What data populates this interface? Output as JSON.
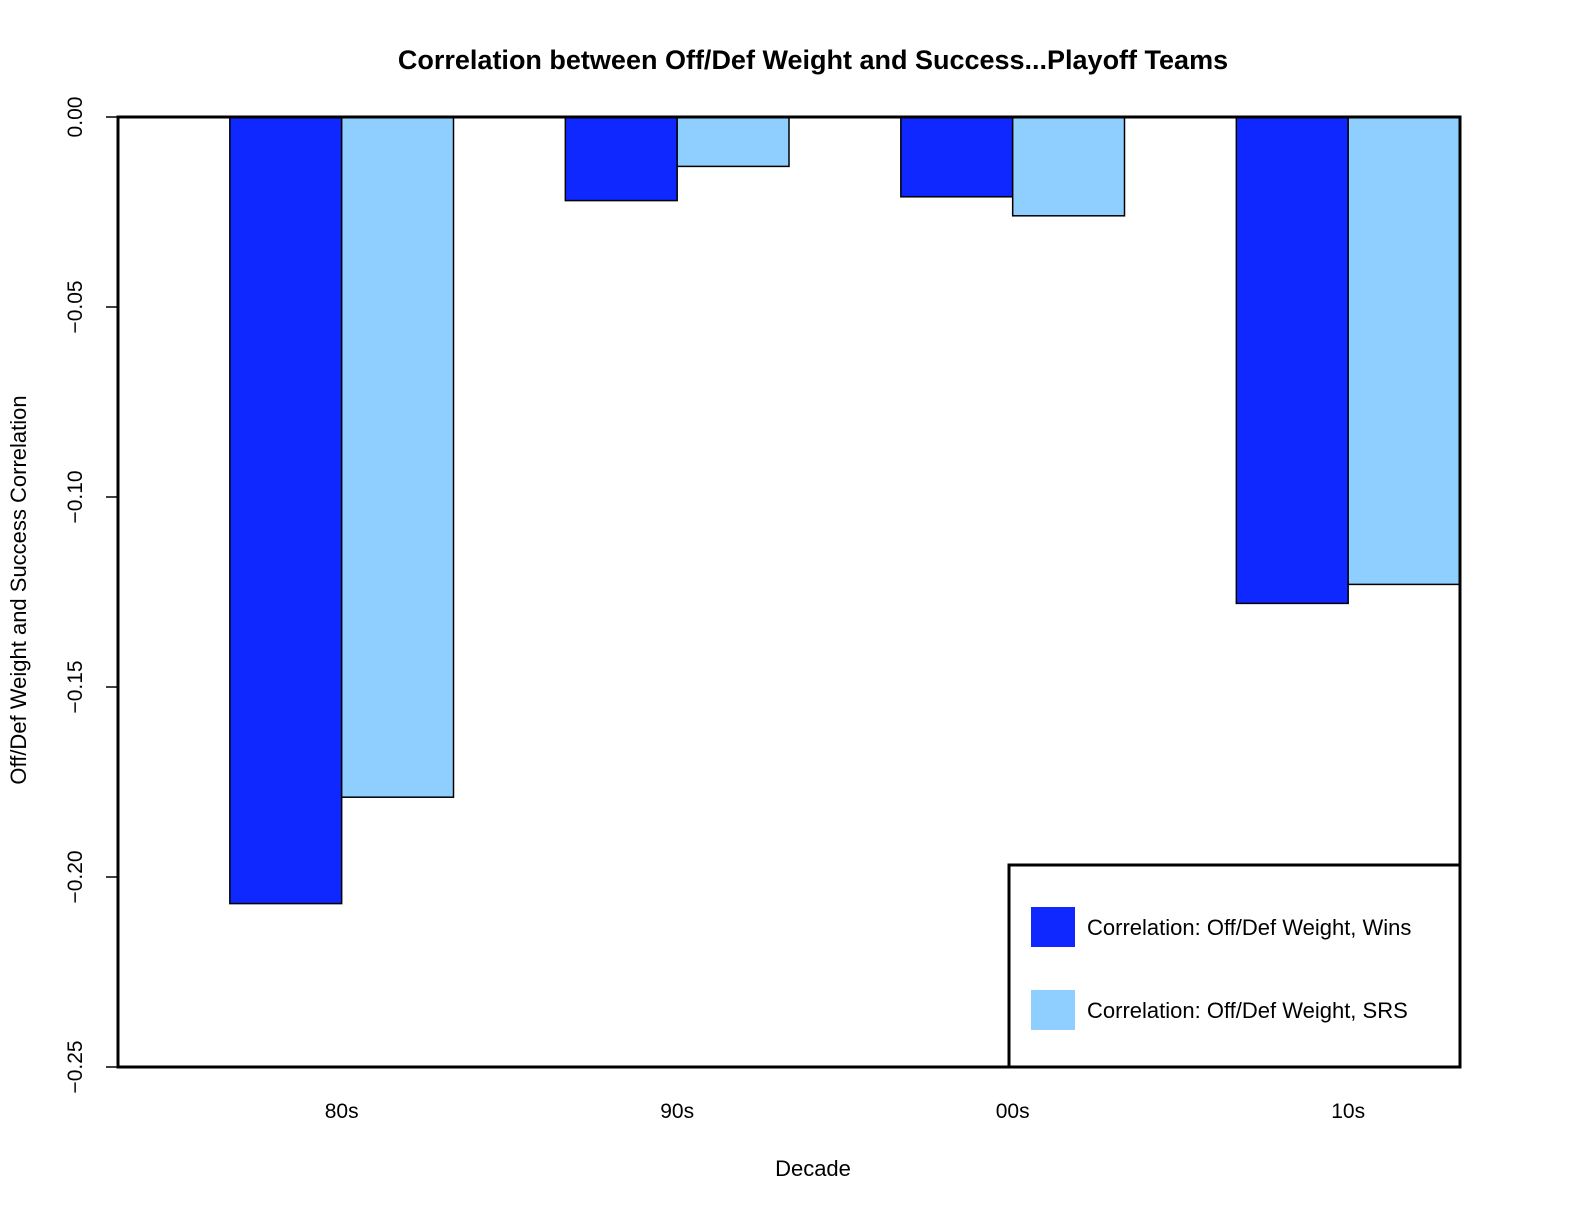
{
  "chart_data": {
    "type": "bar",
    "title": "Correlation between Off/Def Weight and Success...Playoff Teams",
    "xlabel": "Decade",
    "ylabel": "Off/Def Weight and Success Correlation",
    "categories": [
      "80s",
      "90s",
      "00s",
      "10s"
    ],
    "series": [
      {
        "name": "Correlation: Off/Def Weight, Wins",
        "color": "#0f28ff",
        "values": [
          -0.207,
          -0.022,
          -0.021,
          -0.128
        ]
      },
      {
        "name": "Correlation: Off/Def Weight, SRS",
        "color": "#8fcfff",
        "values": [
          -0.179,
          -0.013,
          -0.026,
          -0.123
        ]
      }
    ],
    "ylim": [
      -0.25,
      0.0
    ],
    "yticks": [
      0.0,
      -0.05,
      -0.1,
      -0.15,
      -0.2,
      -0.25
    ],
    "ytick_labels": [
      "0.00",
      "−0.05",
      "−0.10",
      "−0.15",
      "−0.20",
      "−0.25"
    ],
    "legend_position": "bottom-right",
    "grid": false
  }
}
